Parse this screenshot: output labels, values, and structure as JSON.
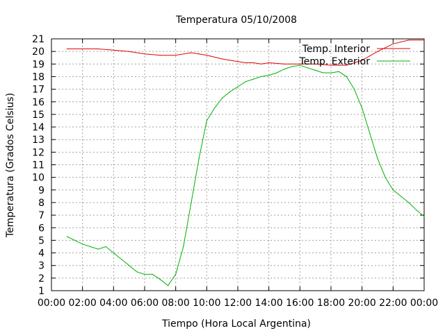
{
  "chart_data": {
    "type": "line",
    "title": "Temperatura 05/10/2008",
    "xlabel": "Tiempo (Hora Local Argentina)",
    "ylabel": "Temperatura (Grados Celsius)",
    "xlim": [
      0,
      24
    ],
    "ylim": [
      1,
      21
    ],
    "grid": true,
    "legend_position": "top-right",
    "x_ticks": [
      "00:00",
      "02:00",
      "04:00",
      "06:00",
      "08:00",
      "10:00",
      "12:00",
      "14:00",
      "16:00",
      "18:00",
      "20:00",
      "22:00",
      "00:00"
    ],
    "y_ticks": [
      1,
      2,
      3,
      4,
      5,
      6,
      7,
      8,
      9,
      10,
      11,
      12,
      13,
      14,
      15,
      16,
      17,
      18,
      19,
      20,
      21
    ],
    "series": [
      {
        "name": "Temp. Interior",
        "color": "#e00000",
        "x": [
          1.0,
          2.0,
          3.0,
          4.0,
          5.0,
          6.0,
          7.0,
          8.0,
          9.0,
          9.5,
          10.0,
          11.0,
          11.5,
          12.0,
          12.5,
          13.0,
          13.5,
          14.0,
          15.0,
          16.0,
          17.0,
          18.0,
          19.0,
          20.0,
          21.0,
          22.0,
          23.0,
          24.0
        ],
        "y": [
          20.2,
          20.2,
          20.2,
          20.1,
          20.0,
          19.8,
          19.7,
          19.7,
          19.9,
          19.8,
          19.7,
          19.4,
          19.3,
          19.2,
          19.1,
          19.1,
          19.0,
          19.1,
          19.0,
          19.0,
          19.0,
          18.9,
          18.9,
          19.3,
          20.0,
          20.6,
          20.9,
          20.9
        ]
      },
      {
        "name": "Temp. Exterior",
        "color": "#00b000",
        "x": [
          1.0,
          1.5,
          2.0,
          2.5,
          3.0,
          3.5,
          4.0,
          4.5,
          5.0,
          5.5,
          6.0,
          6.5,
          7.0,
          7.5,
          8.0,
          8.5,
          9.0,
          9.5,
          10.0,
          10.5,
          11.0,
          11.5,
          12.0,
          12.5,
          13.0,
          13.5,
          14.0,
          14.5,
          15.0,
          15.5,
          16.0,
          16.5,
          17.0,
          17.5,
          18.0,
          18.5,
          19.0,
          19.5,
          20.0,
          20.5,
          21.0,
          21.5,
          22.0,
          22.5,
          23.0,
          23.5,
          24.0
        ],
        "y": [
          5.3,
          5.0,
          4.7,
          4.5,
          4.3,
          4.5,
          4.0,
          3.5,
          3.0,
          2.5,
          2.3,
          2.3,
          1.9,
          1.4,
          2.3,
          4.5,
          8.0,
          11.5,
          14.5,
          15.5,
          16.3,
          16.8,
          17.2,
          17.6,
          17.8,
          18.0,
          18.1,
          18.3,
          18.6,
          18.8,
          18.9,
          18.7,
          18.5,
          18.3,
          18.3,
          18.4,
          18.0,
          17.0,
          15.5,
          13.5,
          11.5,
          10.0,
          9.0,
          8.5,
          8.0,
          7.4,
          6.9
        ]
      }
    ]
  }
}
